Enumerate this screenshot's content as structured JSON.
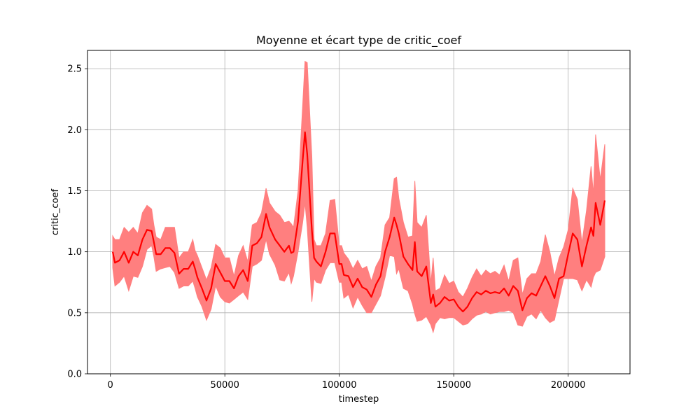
{
  "chart_data": {
    "type": "line",
    "title": "Moyenne et écart type de critic_coef",
    "xlabel": "timestep",
    "ylabel": "critic_coef",
    "xlim": [
      -10000,
      227000
    ],
    "ylim": [
      0,
      2.65
    ],
    "x_ticks": [
      0,
      50000,
      100000,
      150000,
      200000
    ],
    "x_tick_labels": [
      "0",
      "50000",
      "100000",
      "150000",
      "200000"
    ],
    "y_ticks": [
      0.0,
      0.5,
      1.0,
      1.5,
      2.0,
      2.5
    ],
    "y_tick_labels": [
      "0.0",
      "0.5",
      "1.0",
      "1.5",
      "2.0",
      "2.5"
    ],
    "grid": true,
    "colors": {
      "line": "#ff0000",
      "band": "#ff7f7f"
    },
    "series": [
      {
        "x": [
          1000,
          2000,
          4000,
          6000,
          8000,
          10000,
          12000,
          14000,
          16000,
          18000,
          19000,
          20000,
          22000,
          24000,
          26000,
          28000,
          30000,
          32000,
          34000,
          36000,
          37000,
          38000,
          40000,
          42000,
          44000,
          46000,
          48000,
          50000,
          52000,
          54000,
          56000,
          58000,
          60000,
          62000,
          64000,
          66000,
          68000,
          69500,
          72000,
          74000,
          76000,
          78000,
          79000,
          80000,
          82000,
          84000,
          85000,
          86000,
          88000,
          89000,
          90000,
          92000,
          94000,
          96000,
          98000,
          100000,
          101000,
          102000,
          104000,
          106000,
          108000,
          110000,
          112000,
          114000,
          116000,
          118000,
          120000,
          122000,
          124000,
          125000,
          126000,
          128000,
          130000,
          132000,
          133000,
          134000,
          136000,
          138000,
          140000,
          141000,
          142000,
          144000,
          146000,
          148000,
          150000,
          152000,
          154000,
          156000,
          158000,
          160000,
          162000,
          164000,
          166000,
          168000,
          170000,
          172000,
          174000,
          176000,
          178000,
          180000,
          182000,
          184000,
          186000,
          188000,
          190000,
          192000,
          194000,
          196000,
          198000,
          200000,
          202000,
          204000,
          206000,
          208000,
          210000,
          211000,
          212000,
          214000,
          216000
        ],
        "mean": [
          1.0,
          0.91,
          0.93,
          1.0,
          0.91,
          1.0,
          0.97,
          1.1,
          1.18,
          1.17,
          1.08,
          0.98,
          0.98,
          1.03,
          1.03,
          0.99,
          0.82,
          0.86,
          0.86,
          0.92,
          0.86,
          0.79,
          0.7,
          0.6,
          0.7,
          0.9,
          0.83,
          0.76,
          0.76,
          0.7,
          0.8,
          0.85,
          0.76,
          1.05,
          1.07,
          1.12,
          1.31,
          1.2,
          1.1,
          1.05,
          1.0,
          1.05,
          0.99,
          1.0,
          1.25,
          1.75,
          1.98,
          1.8,
          1.18,
          0.95,
          0.92,
          0.88,
          1.0,
          1.15,
          1.15,
          0.9,
          0.9,
          0.81,
          0.8,
          0.71,
          0.78,
          0.71,
          0.69,
          0.63,
          0.73,
          0.8,
          1.0,
          1.12,
          1.28,
          1.22,
          1.15,
          0.96,
          0.9,
          0.85,
          1.08,
          0.84,
          0.8,
          0.88,
          0.58,
          0.65,
          0.55,
          0.58,
          0.63,
          0.6,
          0.61,
          0.55,
          0.51,
          0.55,
          0.62,
          0.67,
          0.65,
          0.68,
          0.66,
          0.67,
          0.66,
          0.7,
          0.64,
          0.72,
          0.68,
          0.52,
          0.62,
          0.66,
          0.64,
          0.72,
          0.8,
          0.72,
          0.62,
          0.78,
          0.8,
          0.98,
          1.15,
          1.1,
          0.88,
          1.05,
          1.2,
          1.13,
          1.4,
          1.22,
          1.42
        ],
        "lower": [
          0.87,
          0.72,
          0.75,
          0.8,
          0.68,
          0.8,
          0.79,
          0.88,
          1.02,
          1.05,
          0.96,
          0.84,
          0.86,
          0.87,
          0.88,
          0.83,
          0.7,
          0.72,
          0.72,
          0.76,
          0.7,
          0.63,
          0.55,
          0.44,
          0.53,
          0.72,
          0.63,
          0.59,
          0.58,
          0.61,
          0.64,
          0.67,
          0.61,
          0.88,
          0.9,
          0.93,
          1.1,
          0.98,
          0.89,
          0.77,
          0.76,
          0.83,
          0.74,
          0.8,
          1.0,
          1.24,
          1.4,
          1.2,
          0.59,
          0.78,
          0.75,
          0.74,
          0.85,
          0.91,
          0.91,
          0.75,
          0.75,
          0.62,
          0.65,
          0.54,
          0.63,
          0.56,
          0.5,
          0.5,
          0.57,
          0.64,
          0.79,
          0.97,
          0.96,
          0.82,
          0.86,
          0.7,
          0.68,
          0.57,
          0.49,
          0.43,
          0.44,
          0.47,
          0.4,
          0.34,
          0.41,
          0.46,
          0.45,
          0.46,
          0.46,
          0.43,
          0.4,
          0.41,
          0.45,
          0.48,
          0.49,
          0.51,
          0.49,
          0.5,
          0.51,
          0.51,
          0.52,
          0.5,
          0.4,
          0.39,
          0.47,
          0.49,
          0.45,
          0.52,
          0.46,
          0.42,
          0.44,
          0.61,
          0.78,
          0.78,
          0.78,
          0.77,
          0.68,
          0.77,
          0.71,
          0.79,
          0.83,
          0.85,
          0.96
        ],
        "upper": [
          1.13,
          1.1,
          1.1,
          1.2,
          1.16,
          1.2,
          1.15,
          1.32,
          1.38,
          1.35,
          1.22,
          1.12,
          1.1,
          1.2,
          1.2,
          1.2,
          0.95,
          1.0,
          1.0,
          1.1,
          1.01,
          0.97,
          0.87,
          0.77,
          0.87,
          1.06,
          1.03,
          0.95,
          0.95,
          0.8,
          0.97,
          1.05,
          0.92,
          1.22,
          1.24,
          1.32,
          1.52,
          1.4,
          1.33,
          1.3,
          1.24,
          1.25,
          1.23,
          1.2,
          1.5,
          2.2,
          2.56,
          2.55,
          1.78,
          1.1,
          1.05,
          1.05,
          1.15,
          1.42,
          1.43,
          1.05,
          1.05,
          0.99,
          0.94,
          0.86,
          0.93,
          0.86,
          0.88,
          0.76,
          0.88,
          0.95,
          1.22,
          1.28,
          1.6,
          1.61,
          1.44,
          1.24,
          1.12,
          1.13,
          1.58,
          1.24,
          1.2,
          1.3,
          0.74,
          0.95,
          0.68,
          0.7,
          0.81,
          0.74,
          0.76,
          0.67,
          0.63,
          0.7,
          0.79,
          0.86,
          0.8,
          0.85,
          0.82,
          0.84,
          0.81,
          0.89,
          0.76,
          0.93,
          0.95,
          0.65,
          0.78,
          0.82,
          0.82,
          0.92,
          1.14,
          1.0,
          0.8,
          0.95,
          1.04,
          1.18,
          1.52,
          1.43,
          1.07,
          1.34,
          1.7,
          1.47,
          1.96,
          1.59,
          1.88
        ]
      }
    ]
  }
}
